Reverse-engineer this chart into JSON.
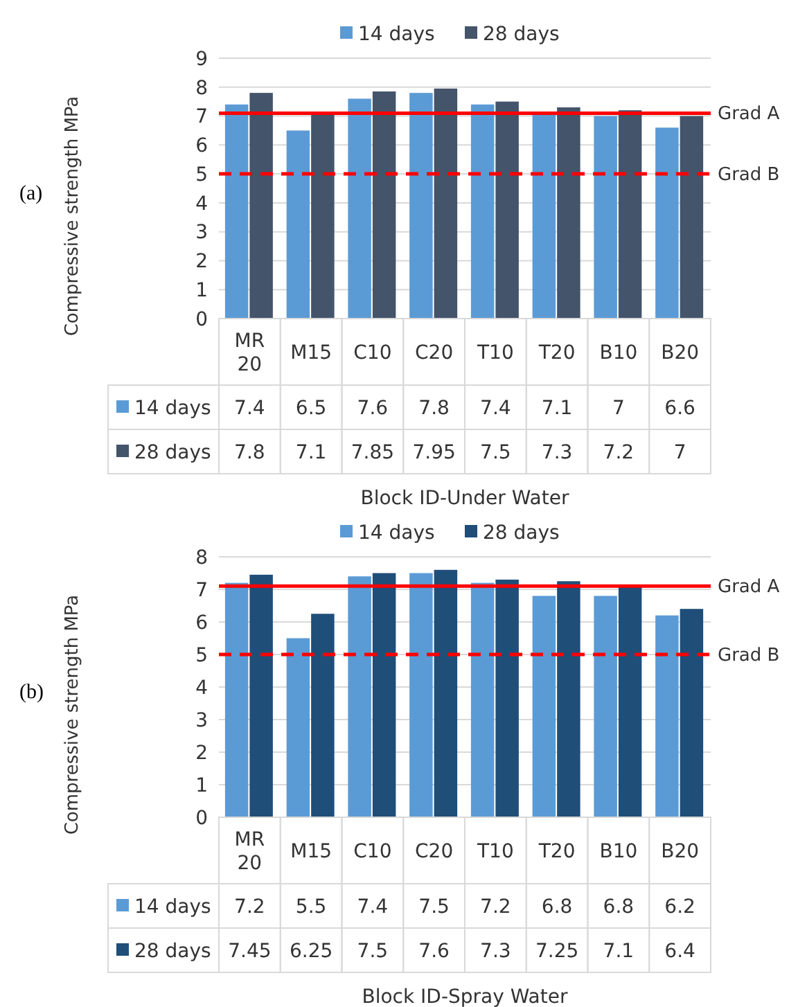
{
  "chart_data": [
    {
      "type": "bar",
      "ylabel": "Compressive strength MPa",
      "xlabel": "Block ID-Under Water",
      "categories": [
        "MR 20",
        "M15",
        "C10",
        "C20",
        "T10",
        "T20",
        "B10",
        "B20"
      ],
      "series": [
        {
          "name": "14 days",
          "color": "#5b9bd5",
          "values": [
            7.4,
            6.5,
            7.6,
            7.8,
            7.4,
            7.1,
            7,
            6.6
          ]
        },
        {
          "name": "28 days",
          "color": "#44546a",
          "values": [
            7.8,
            7.1,
            7.85,
            7.95,
            7.5,
            7.3,
            7.2,
            7
          ]
        }
      ],
      "ylim": [
        0,
        9
      ],
      "yticks": [
        0,
        1,
        2,
        3,
        4,
        5,
        6,
        7,
        8,
        9
      ],
      "grid": "y",
      "legend": "top",
      "data_labels": true,
      "ref_lines": [
        {
          "axis": "y",
          "value": 7.1,
          "label": "Grad A",
          "color": "#ff0000",
          "line_style": "solid"
        },
        {
          "axis": "y",
          "value": 5,
          "label": "Grad B",
          "color": "#ff0000",
          "line_style": "dashed"
        }
      ],
      "annotations": [
        "(a)"
      ]
    },
    {
      "type": "bar",
      "ylabel": "Compressive strength MPa",
      "xlabel": "Block ID-Spray Water",
      "categories": [
        "MR 20",
        "M15",
        "C10",
        "C20",
        "T10",
        "T20",
        "B10",
        "B20"
      ],
      "series": [
        {
          "name": "14 days",
          "color": "#5b9bd5",
          "values": [
            7.2,
            5.5,
            7.4,
            7.5,
            7.2,
            6.8,
            6.8,
            6.2
          ]
        },
        {
          "name": "28 days",
          "color": "#1f4e79",
          "values": [
            7.45,
            6.25,
            7.5,
            7.6,
            7.3,
            7.25,
            7.1,
            6.4
          ]
        }
      ],
      "ylim": [
        0,
        8
      ],
      "yticks": [
        0,
        1,
        2,
        3,
        4,
        5,
        6,
        7,
        8
      ],
      "grid": "y",
      "legend": "top",
      "data_labels": true,
      "ref_lines": [
        {
          "axis": "y",
          "value": 7.1,
          "label": "Grad A",
          "color": "#ff0000",
          "line_style": "solid"
        },
        {
          "axis": "y",
          "value": 5,
          "label": "Grad B",
          "color": "#ff0000",
          "line_style": "dashed"
        }
      ],
      "annotations": [
        "(b)"
      ]
    }
  ]
}
